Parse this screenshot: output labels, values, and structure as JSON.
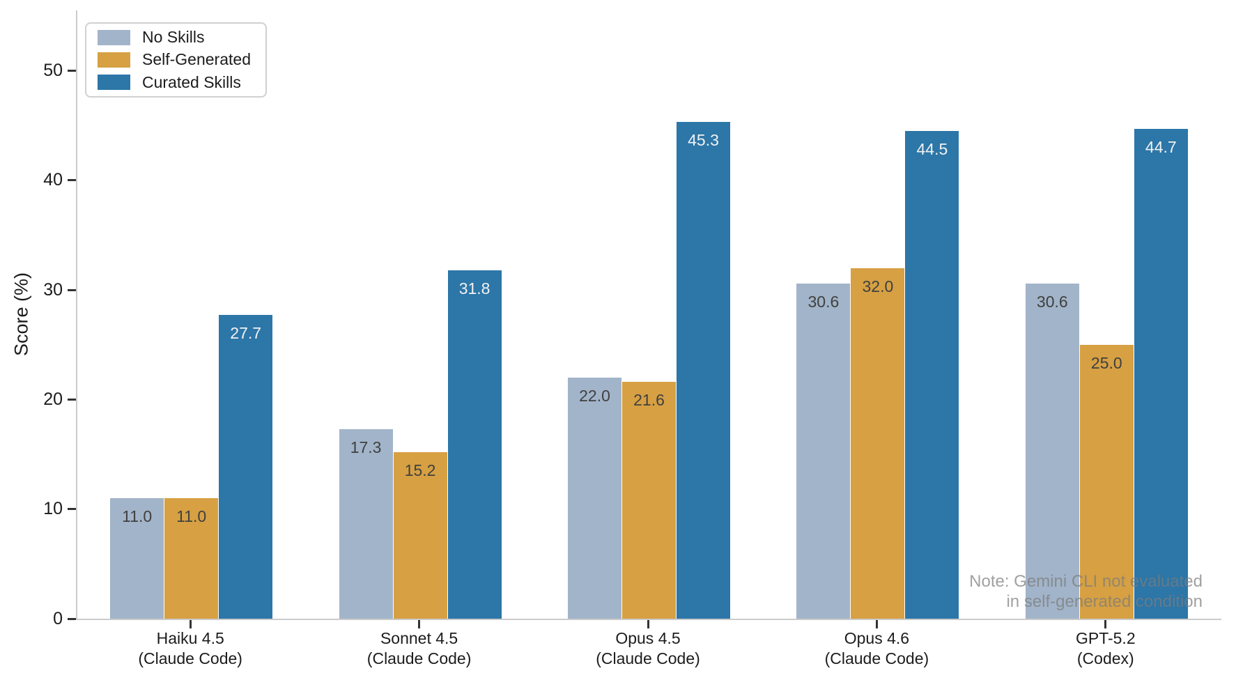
{
  "chart_data": {
    "type": "bar",
    "title": "",
    "xlabel": "",
    "ylabel": "Score (%)",
    "ylim": [
      0,
      55.5
    ],
    "yticks": [
      0,
      10,
      20,
      30,
      40,
      50
    ],
    "grid": false,
    "legend_position": "upper-left",
    "categories": [
      {
        "line1": "Haiku 4.5",
        "line2": "(Claude Code)"
      },
      {
        "line1": "Sonnet 4.5",
        "line2": "(Claude Code)"
      },
      {
        "line1": "Opus 4.5",
        "line2": "(Claude Code)"
      },
      {
        "line1": "Opus 4.6",
        "line2": "(Claude Code)"
      },
      {
        "line1": "GPT-5.2",
        "line2": "(Codex)"
      }
    ],
    "series": [
      {
        "name": "No Skills",
        "color": "#a2b4c9",
        "label_color": "#404040",
        "values": [
          11.0,
          17.3,
          22.0,
          30.6,
          30.6
        ]
      },
      {
        "name": "Self-Generated",
        "color": "#d6a043",
        "label_color": "#404040",
        "values": [
          11.0,
          15.2,
          21.6,
          32.0,
          25.0
        ]
      },
      {
        "name": "Curated Skills",
        "color": "#2c76a8",
        "label_color": "#f2f2f2",
        "values": [
          27.7,
          31.8,
          45.3,
          44.5,
          44.7
        ]
      }
    ],
    "value_label_format": "one-decimal",
    "note": {
      "line1": "Note: Gemini CLI not evaluated",
      "line2": "in self-generated condition"
    },
    "colors": {
      "axis_spine": "#cbcbcb",
      "tick": "#333333",
      "text": "#1c1c1c",
      "note_text": "#7b7b7b"
    }
  }
}
